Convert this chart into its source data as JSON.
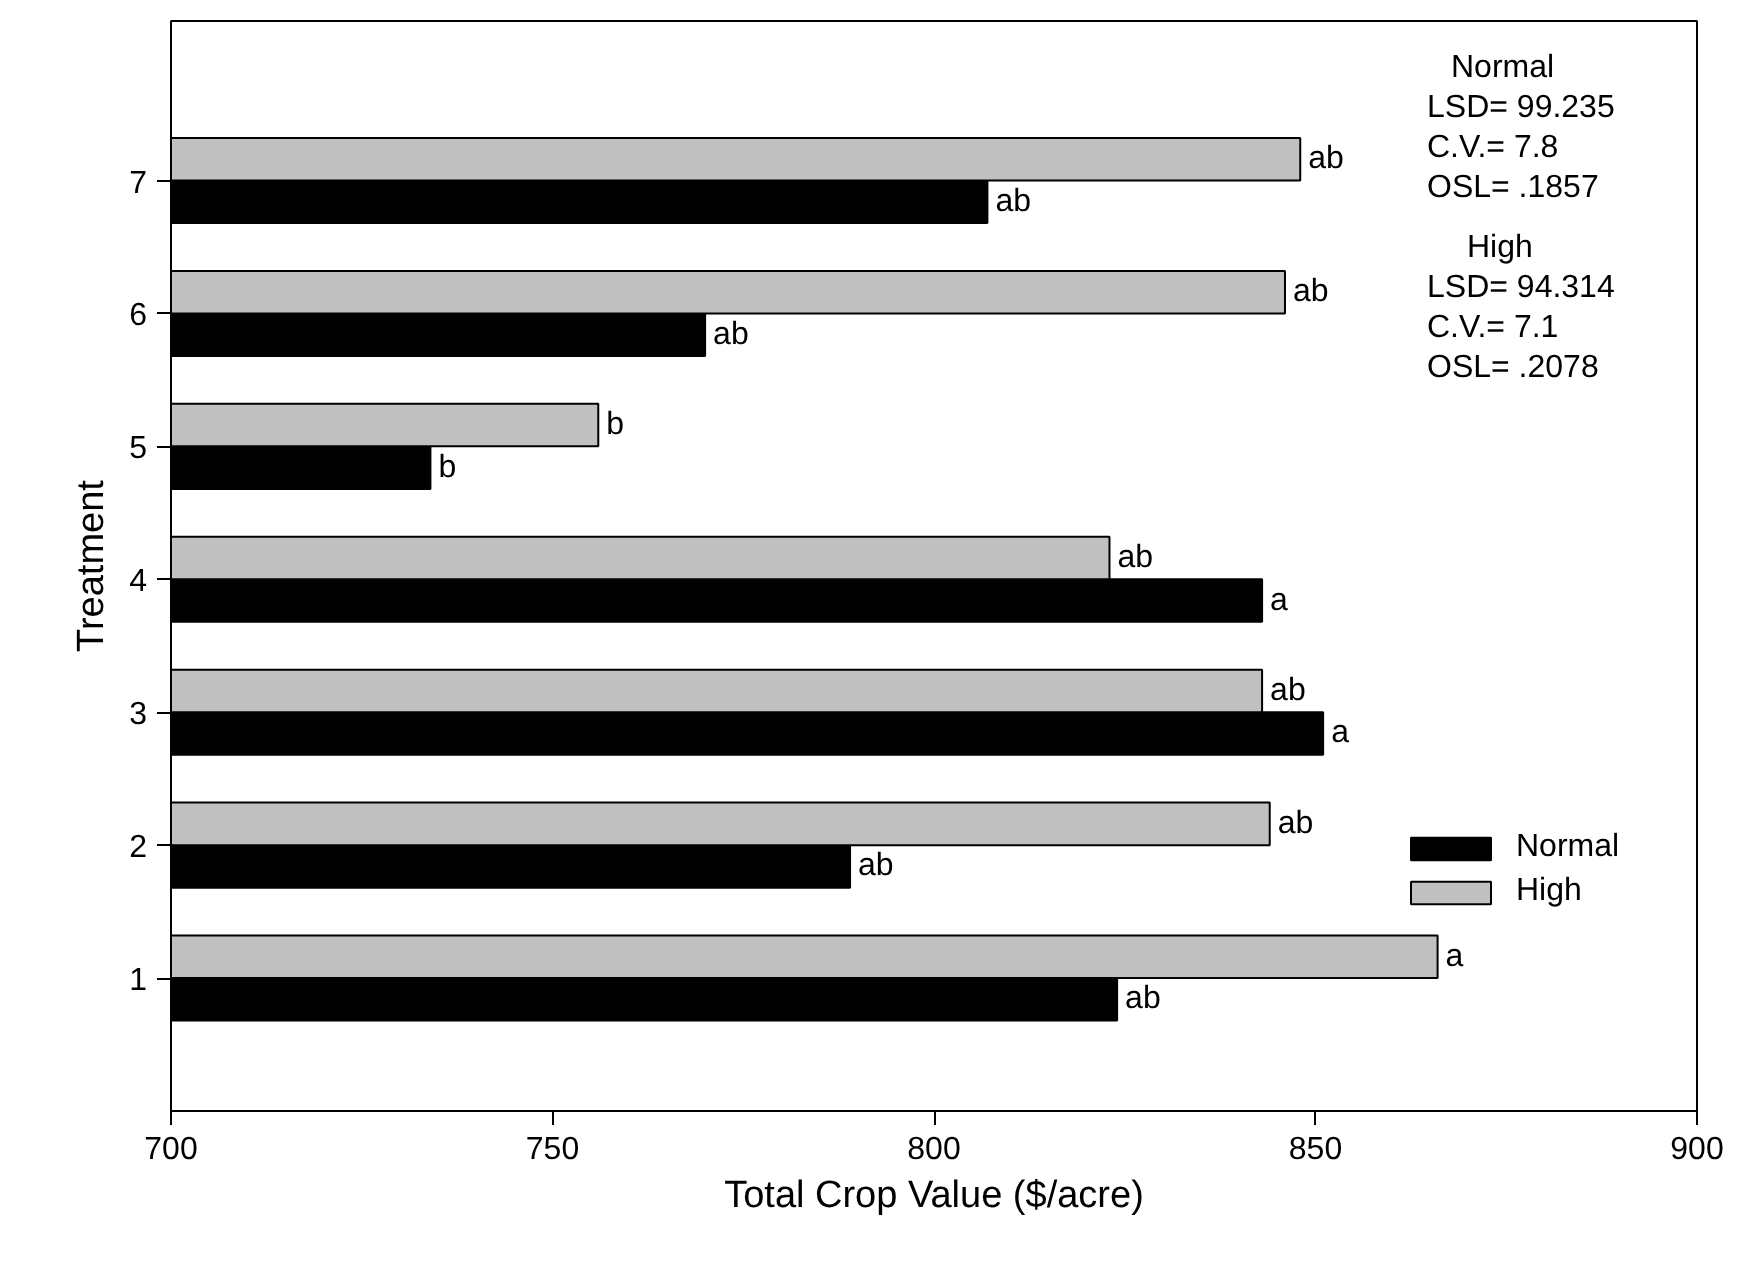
{
  "chart_data": {
    "type": "bar",
    "orientation": "horizontal",
    "xlabel": "Total Crop Value ($/acre)",
    "ylabel": "Treatment",
    "categories": [
      "7",
      "6",
      "5",
      "4",
      "3",
      "2",
      "1"
    ],
    "series": [
      {
        "name": "Normal",
        "color": "#000000",
        "values": [
          807,
          770,
          734,
          843,
          851,
          789,
          824
        ],
        "value_labels": [
          "ab",
          "ab",
          "b",
          "a",
          "a",
          "ab",
          "ab"
        ]
      },
      {
        "name": "High",
        "color": "#c0c0c0",
        "values": [
          848,
          846,
          756,
          823,
          843,
          844,
          866
        ],
        "value_labels": [
          "ab",
          "ab",
          "b",
          "ab",
          "ab",
          "ab",
          "a"
        ]
      }
    ],
    "xlim": [
      700,
      900
    ],
    "xticks": [
      700,
      750,
      800,
      850,
      900
    ],
    "grid": false,
    "legend": "bottom right",
    "annotations": [
      "Normal",
      "LSD= 99.235",
      "C.V.= 7.8",
      "OSL= .1857",
      "High",
      "LSD= 94.314",
      "C.V.= 7.1",
      "OSL= .2078"
    ]
  }
}
